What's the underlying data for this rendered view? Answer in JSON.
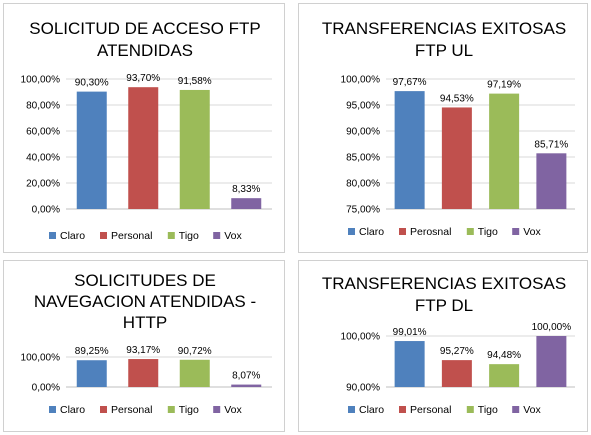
{
  "chart_data": [
    {
      "type": "bar",
      "title_lines": [
        "SOLICITUD DE ACCESO FTP",
        "ATENDIDAS"
      ],
      "categories": [
        "Claro",
        "Personal",
        "Tigo",
        "Vox"
      ],
      "values": [
        90.3,
        93.7,
        91.58,
        8.33
      ],
      "value_labels": [
        "90,30%",
        "93,70%",
        "91,58%",
        "8,33%"
      ],
      "ylim": [
        0,
        100
      ],
      "y_ticks": [
        0,
        20,
        40,
        60,
        80,
        100
      ],
      "y_tick_labels": [
        "0,00%",
        "20,00%",
        "40,00%",
        "60,00%",
        "80,00%",
        "100,00%"
      ],
      "legend": [
        "Claro",
        "Personal",
        "Tigo",
        "Vox"
      ],
      "legend_position": "bottom",
      "grid": true
    },
    {
      "type": "bar",
      "title_lines": [
        "TRANSFERENCIAS EXITOSAS",
        "FTP UL"
      ],
      "categories": [
        "Claro",
        "Perosnal",
        "Tigo",
        "Vox"
      ],
      "values": [
        97.67,
        94.53,
        97.19,
        85.71
      ],
      "value_labels": [
        "97,67%",
        "94,53%",
        "97,19%",
        "85,71%"
      ],
      "ylim": [
        75,
        100
      ],
      "y_ticks": [
        75,
        80,
        85,
        90,
        95,
        100
      ],
      "y_tick_labels": [
        "75,00%",
        "80,00%",
        "85,00%",
        "90,00%",
        "95,00%",
        "100,00%"
      ],
      "legend": [
        "Claro",
        "Perosnal",
        "Tigo",
        "Vox"
      ],
      "legend_position": "bottom",
      "grid": true
    },
    {
      "type": "bar",
      "title_lines": [
        "SOLICITUDES DE",
        "NAVEGACION ATENDIDAS -",
        "HTTP"
      ],
      "categories": [
        "Claro",
        "Personal",
        "Tigo",
        "Vox"
      ],
      "values": [
        89.25,
        93.17,
        90.72,
        8.07
      ],
      "value_labels": [
        "89,25%",
        "93,17%",
        "90,72%",
        "8,07%"
      ],
      "ylim": [
        0,
        100
      ],
      "y_ticks": [
        0,
        100
      ],
      "y_tick_labels": [
        "0,00%",
        "100,00%"
      ],
      "legend": [
        "Claro",
        "Personal",
        "Tigo",
        "Vox"
      ],
      "legend_position": "bottom",
      "grid": true
    },
    {
      "type": "bar",
      "title_lines": [
        "TRANSFERENCIAS EXITOSAS",
        "FTP DL"
      ],
      "categories": [
        "Claro",
        "Personal",
        "Tigo",
        "Vox"
      ],
      "values": [
        99.01,
        95.27,
        94.48,
        100.0
      ],
      "value_labels": [
        "99,01%",
        "95,27%",
        "94,48%",
        "100,00%"
      ],
      "ylim": [
        90,
        100
      ],
      "y_ticks": [
        90,
        100
      ],
      "y_tick_labels": [
        "90,00%",
        "100,00%"
      ],
      "legend": [
        "Claro",
        "Personal",
        "Tigo",
        "Vox"
      ],
      "legend_position": "bottom",
      "grid": true
    }
  ],
  "colors": {
    "series": [
      "#4f81bd",
      "#c0504d",
      "#9bbb59",
      "#8064a2"
    ]
  }
}
